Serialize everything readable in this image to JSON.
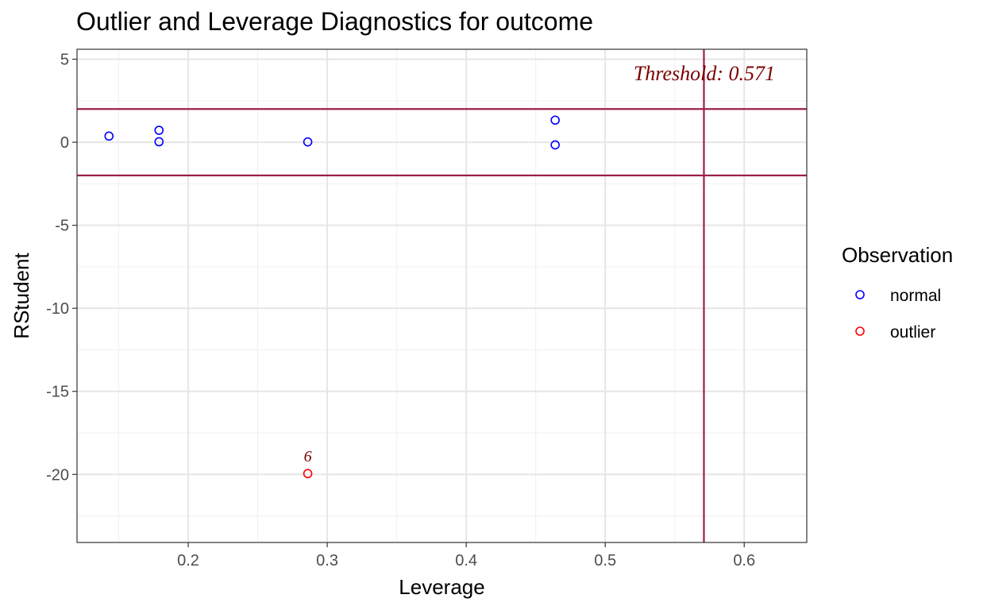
{
  "chart_data": {
    "type": "scatter",
    "title": "Outlier and Leverage Diagnostics for outcome",
    "xlabel": "Leverage",
    "ylabel": "RStudent",
    "xlim": [
      0.12,
      0.645
    ],
    "ylim": [
      -24.1,
      5.6
    ],
    "x_ticks": [
      0.2,
      0.3,
      0.4,
      0.5,
      0.6
    ],
    "x_tick_labels": [
      "0.2",
      "0.3",
      "0.4",
      "0.5",
      "0.6"
    ],
    "y_ticks": [
      5,
      0,
      -5,
      -10,
      -15,
      -20
    ],
    "y_tick_labels": [
      "5",
      "0",
      "-5",
      "-10",
      "-15",
      "-20"
    ],
    "grid": true,
    "legend": {
      "title": "Observation",
      "position": "right",
      "entries": [
        {
          "label": "normal",
          "color": "#0000ff"
        },
        {
          "label": "outlier",
          "color": "#ff0000"
        }
      ]
    },
    "series": [
      {
        "name": "normal",
        "color": "#0000ff",
        "points": [
          {
            "x": 0.143,
            "y": 0.37
          },
          {
            "x": 0.179,
            "y": 0.72
          },
          {
            "x": 0.179,
            "y": 0.03
          },
          {
            "x": 0.286,
            "y": 0.02
          },
          {
            "x": 0.464,
            "y": 1.33
          },
          {
            "x": 0.464,
            "y": -0.16
          }
        ]
      },
      {
        "name": "outlier",
        "color": "#ff0000",
        "points": [
          {
            "x": 0.286,
            "y": -19.95,
            "label": "6"
          }
        ]
      }
    ],
    "reference_lines": {
      "color": "#9c1e4e",
      "horizontal": [
        2,
        -2
      ],
      "vertical": [
        0.571
      ]
    },
    "annotations": [
      {
        "text": "Threshold: 0.571",
        "color": "#7a0000"
      }
    ],
    "point_label_color": "#7a0000"
  }
}
